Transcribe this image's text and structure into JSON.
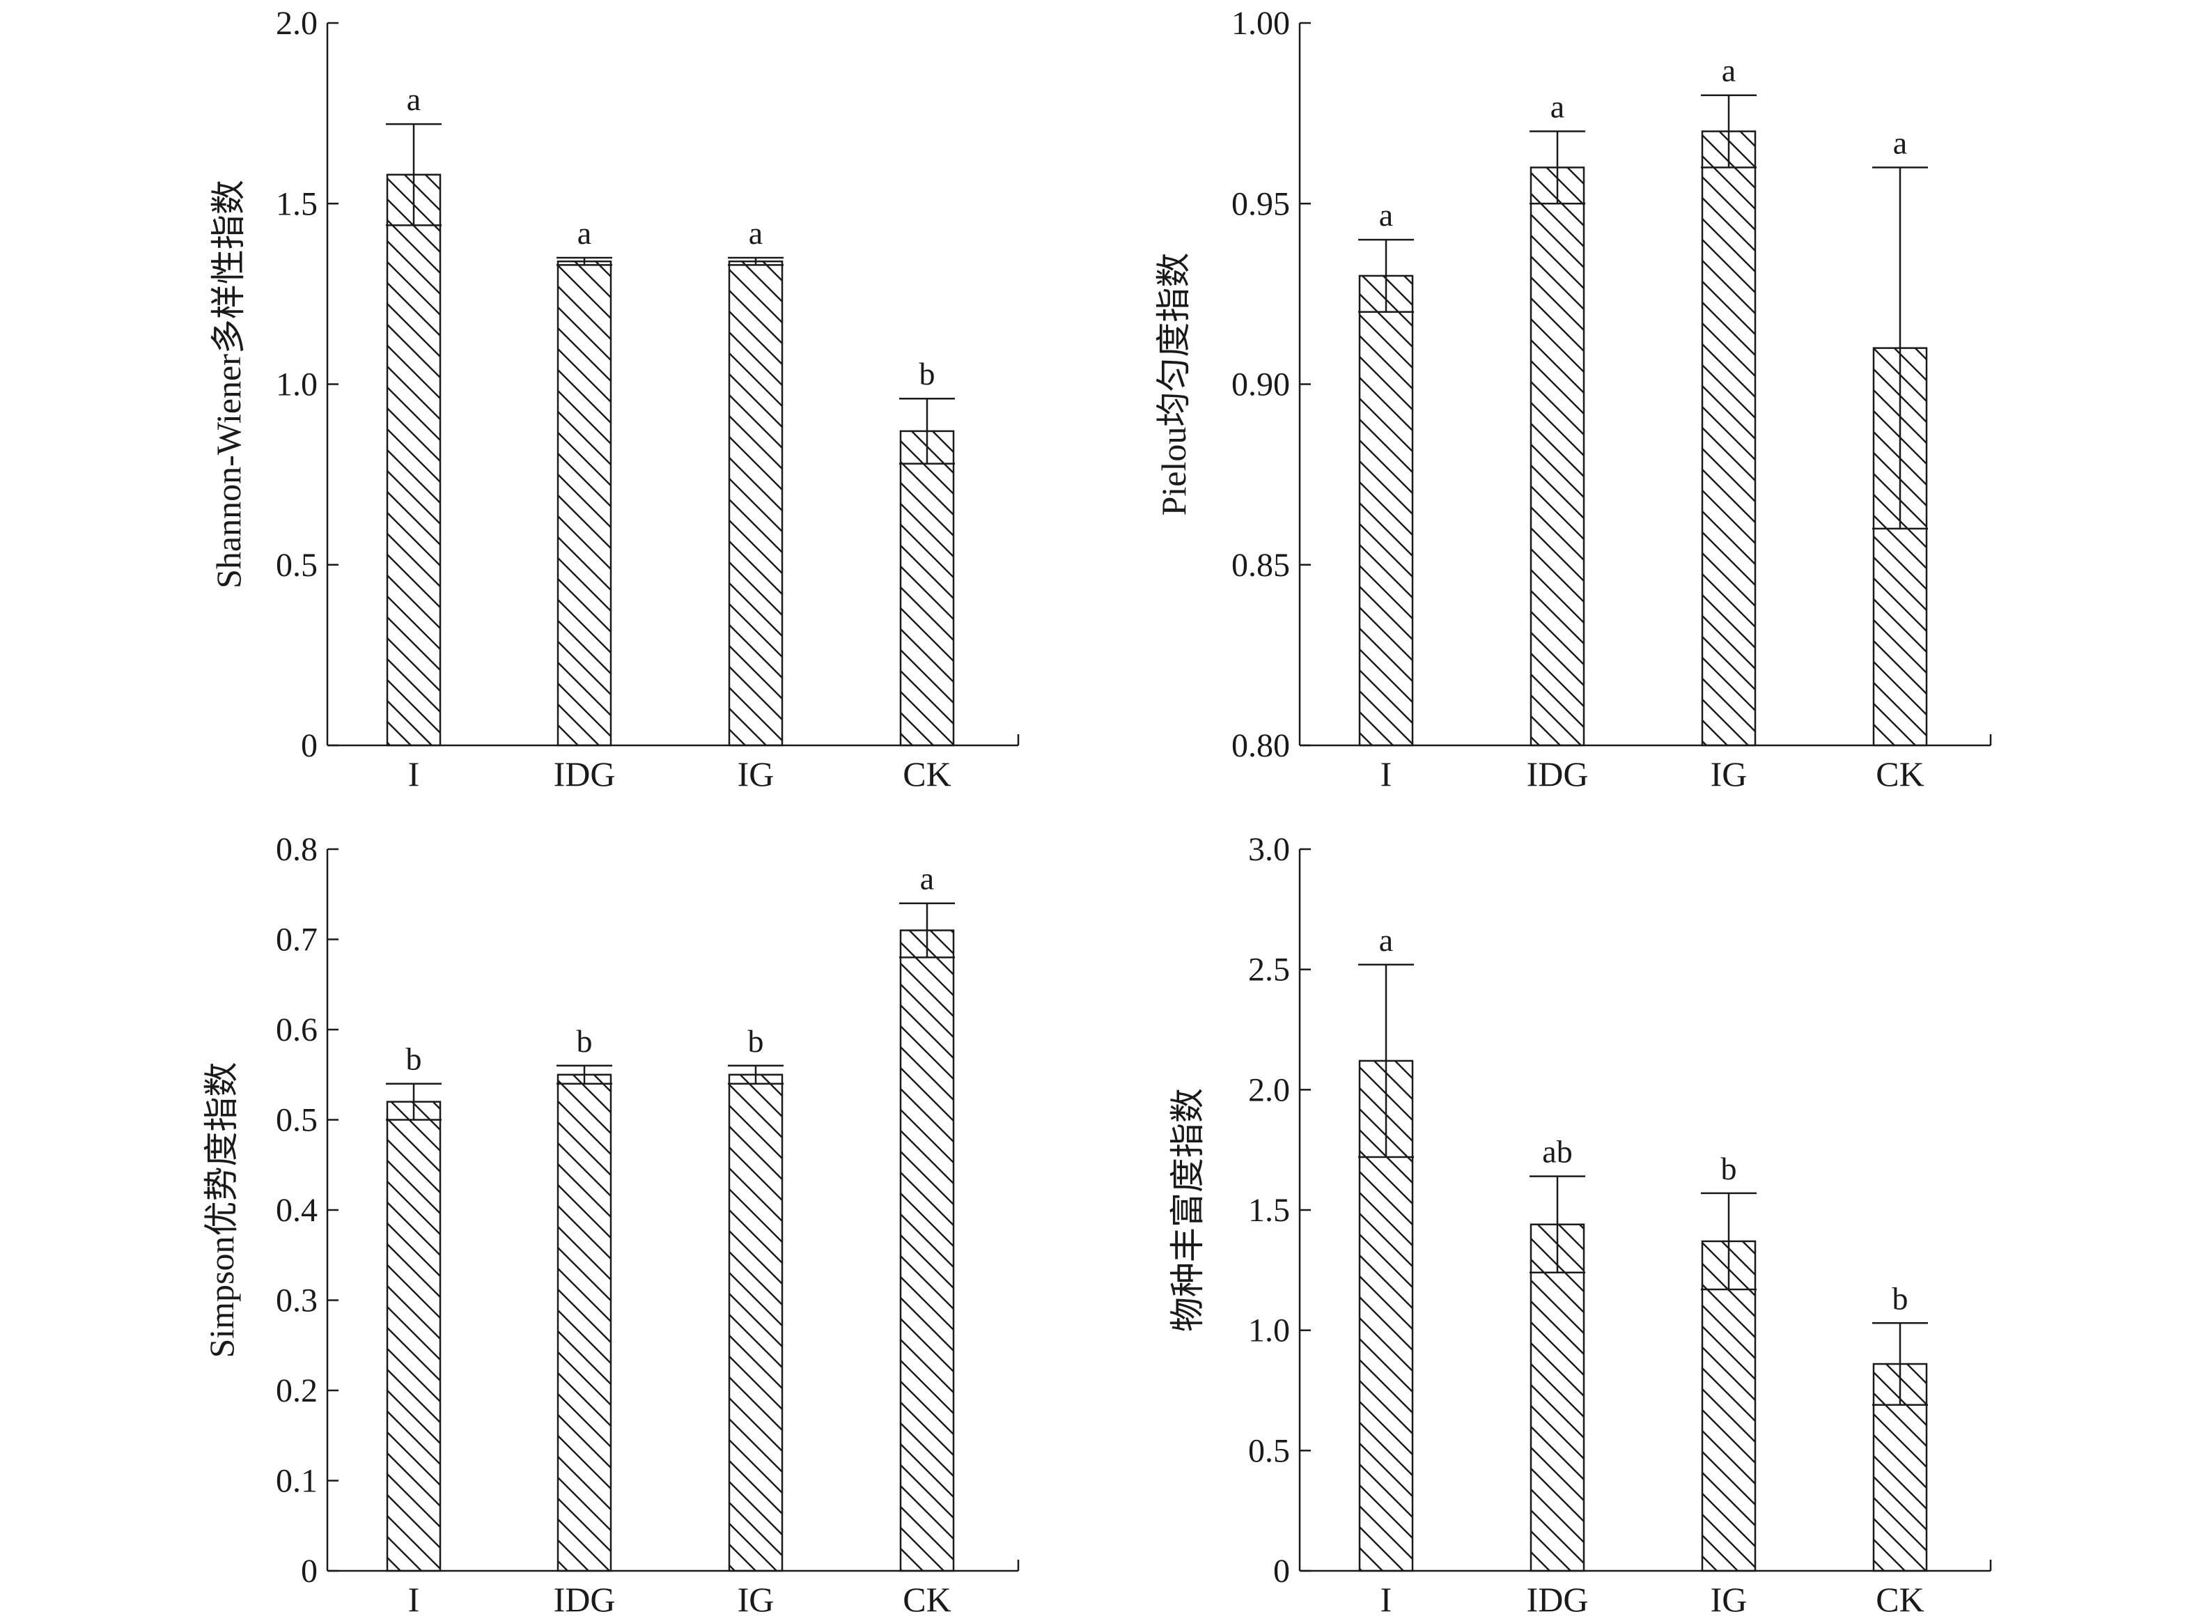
{
  "figure": {
    "colors": {
      "ink": "#1a1a1a",
      "bar_fill": "#ffffff",
      "hatch": "#1a1a1a",
      "background": "#ffffff"
    }
  },
  "chart_data": [
    {
      "type": "bar",
      "ylabel": "Shannon-Wiener多样性指数",
      "categories": [
        "I",
        "IDG",
        "IG",
        "CK"
      ],
      "values": [
        1.58,
        1.34,
        1.34,
        0.87
      ],
      "errors": [
        0.14,
        0.01,
        0.01,
        0.09
      ],
      "significance": [
        "a",
        "a",
        "a",
        "b"
      ],
      "ylim": [
        0,
        2.0
      ],
      "yticks": [
        0,
        0.5,
        1.0,
        1.5,
        2.0
      ],
      "yticklabels": [
        "0",
        "0.5",
        "1.0",
        "1.5",
        "2.0"
      ],
      "bar_pattern": "diagonal-hatch",
      "grid": false
    },
    {
      "type": "bar",
      "ylabel": "Pielou均匀度指数",
      "categories": [
        "I",
        "IDG",
        "IG",
        "CK"
      ],
      "values": [
        0.93,
        0.96,
        0.97,
        0.91
      ],
      "errors": [
        0.01,
        0.01,
        0.01,
        0.05
      ],
      "significance": [
        "a",
        "a",
        "a",
        "a"
      ],
      "ylim": [
        0.8,
        1.0
      ],
      "yticks": [
        0.8,
        0.85,
        0.9,
        0.95,
        1.0
      ],
      "yticklabels": [
        "0.80",
        "0.85",
        "0.90",
        "0.95",
        "1.00"
      ],
      "bar_pattern": "diagonal-hatch",
      "grid": false
    },
    {
      "type": "bar",
      "ylabel": "Simpson优势度指数",
      "categories": [
        "I",
        "IDG",
        "IG",
        "CK"
      ],
      "values": [
        0.52,
        0.55,
        0.55,
        0.71
      ],
      "errors": [
        0.02,
        0.01,
        0.01,
        0.03
      ],
      "significance": [
        "b",
        "b",
        "b",
        "a"
      ],
      "ylim": [
        0,
        0.8
      ],
      "yticks": [
        0,
        0.1,
        0.2,
        0.3,
        0.4,
        0.5,
        0.6,
        0.7,
        0.8
      ],
      "yticklabels": [
        "0",
        "0.1",
        "0.2",
        "0.3",
        "0.4",
        "0.5",
        "0.6",
        "0.7",
        "0.8"
      ],
      "bar_pattern": "diagonal-hatch",
      "grid": false
    },
    {
      "type": "bar",
      "ylabel": "物种丰富度指数",
      "categories": [
        "I",
        "IDG",
        "IG",
        "CK"
      ],
      "values": [
        2.12,
        1.44,
        1.37,
        0.86
      ],
      "errors": [
        0.4,
        0.2,
        0.2,
        0.17
      ],
      "significance": [
        "a",
        "ab",
        "b",
        "b"
      ],
      "ylim": [
        0,
        3.0
      ],
      "yticks": [
        0,
        0.5,
        1.0,
        1.5,
        2.0,
        2.5,
        3.0
      ],
      "yticklabels": [
        "0",
        "0.5",
        "1.0",
        "1.5",
        "2.0",
        "2.5",
        "3.0"
      ],
      "bar_pattern": "diagonal-hatch",
      "grid": false
    }
  ]
}
